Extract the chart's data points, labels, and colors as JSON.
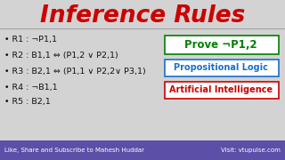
{
  "title": "Inference Rules",
  "title_color": "#cc0000",
  "bg_color": "#d3d3d3",
  "rules": [
    "• R1 : ¬P1,1",
    "• R2 : B1,1 ⇔ (P1,2 ∨ P2,1)",
    "• R3 : B2,1 ⇔ (P1,1 ∨ P2,2∨ P3,1)",
    "• R4 : ¬B1,1",
    "• R5 : B2,1"
  ],
  "prove_text": "Prove ¬P1,2",
  "prove_color": "#008000",
  "prove_box_color": "#008000",
  "prop_text": "Propositional Logic",
  "prop_color": "#1a6fcc",
  "prop_box_color": "#1a6fcc",
  "ai_text": "Artificial Intelligence",
  "ai_color": "#cc0000",
  "ai_box_color": "#cc0000",
  "footer_bg": "#5b4fa8",
  "footer_text_left": "Like, Share and Subscribe to Mahesh Huddar",
  "footer_text_right": "Visit: vtupulse.com",
  "footer_text_color": "#ffffff"
}
